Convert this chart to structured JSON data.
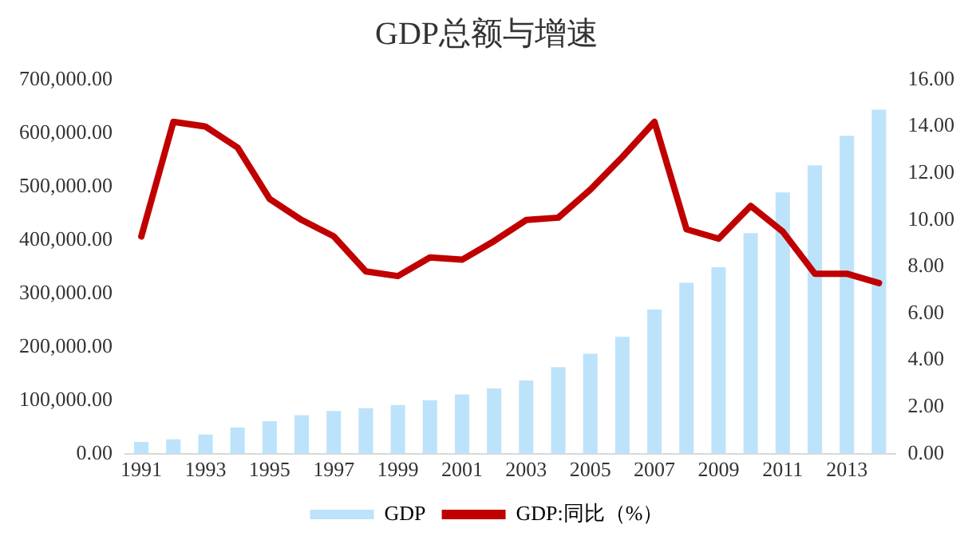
{
  "chart_data": {
    "type": "bar",
    "title": "GDP总额与增速",
    "categories": [
      "1991",
      null,
      "1993",
      null,
      "1995",
      null,
      "1997",
      null,
      "1999",
      null,
      "2001",
      null,
      "2003",
      null,
      "2005",
      null,
      "2007",
      null,
      "2009",
      null,
      "2011",
      null,
      "2013",
      null
    ],
    "series": [
      {
        "name": "GDP",
        "color": "#bde3fa",
        "values": [
          22000,
          27000,
          36000,
          49000,
          61000,
          72000,
          80000,
          85000,
          91000,
          100000,
          111000,
          122000,
          137000,
          162000,
          187000,
          219000,
          270000,
          320000,
          349000,
          413000,
          489000,
          540000,
          595000,
          644000
        ]
      },
      {
        "name": "GDP:同比（%）",
        "type": "line",
        "axis": "y2",
        "color": "#c00000",
        "values": [
          9.3,
          14.2,
          14.0,
          13.1,
          10.9,
          10.0,
          9.3,
          7.8,
          7.6,
          8.4,
          8.3,
          9.1,
          10.0,
          10.1,
          11.3,
          12.7,
          14.2,
          9.6,
          9.2,
          10.6,
          9.5,
          7.7,
          7.7,
          7.3
        ]
      }
    ],
    "ylim": [
      0,
      700000
    ],
    "yticks": [
      {
        "value": 0,
        "label": "0.00"
      },
      {
        "value": 100000,
        "label": "100,000.00"
      },
      {
        "value": 200000,
        "label": "200,000.00"
      },
      {
        "value": 300000,
        "label": "300,000.00"
      },
      {
        "value": 400000,
        "label": "400,000.00"
      },
      {
        "value": 500000,
        "label": "500,000.00"
      },
      {
        "value": 600000,
        "label": "600,000.00"
      },
      {
        "value": 700000,
        "label": "700,000.00"
      }
    ],
    "y2lim": [
      0,
      16
    ],
    "y2ticks": [
      {
        "value": 0,
        "label": "0.00"
      },
      {
        "value": 2,
        "label": "2.00"
      },
      {
        "value": 4,
        "label": "4.00"
      },
      {
        "value": 6,
        "label": "6.00"
      },
      {
        "value": 8,
        "label": "8.00"
      },
      {
        "value": 10,
        "label": "10.00"
      },
      {
        "value": 12,
        "label": "12.00"
      },
      {
        "value": 14,
        "label": "14.00"
      },
      {
        "value": 16,
        "label": "16.00"
      }
    ],
    "grid": false,
    "legend": "bottom",
    "marker": "none"
  }
}
